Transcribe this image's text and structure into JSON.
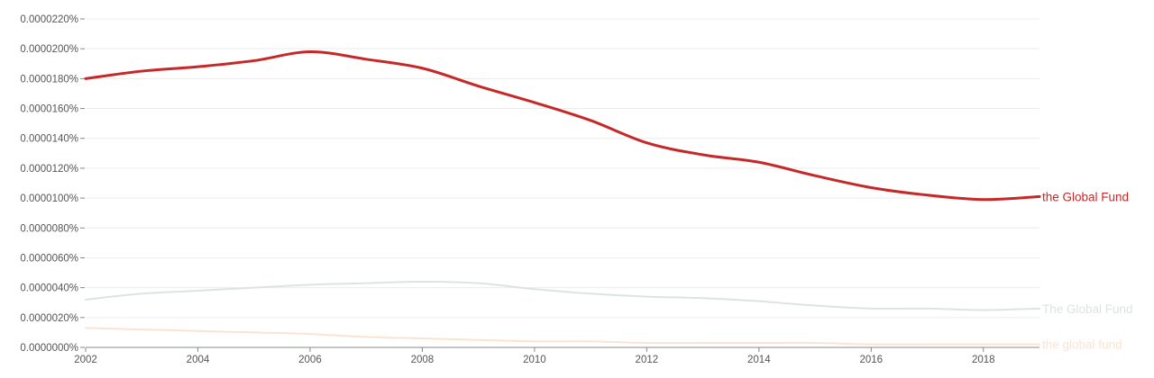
{
  "chart_data": {
    "type": "line",
    "title": "",
    "xlabel": "",
    "ylabel": "",
    "xlim": [
      2002,
      2019
    ],
    "ylim": [
      0,
      2.2e-05
    ],
    "y_ticks": [
      "0.0000000%",
      "0.0000020%",
      "0.0000040%",
      "0.0000060%",
      "0.0000080%",
      "0.0000100%",
      "0.0000120%",
      "0.0000140%",
      "0.0000160%",
      "0.0000180%",
      "0.0000200%",
      "0.0000220%"
    ],
    "x_ticks": [
      "2002",
      "2004",
      "2006",
      "2008",
      "2010",
      "2012",
      "2014",
      "2016",
      "2018"
    ],
    "grid": true,
    "legend_placement": "right-end-labels",
    "x": [
      2002,
      2003,
      2004,
      2005,
      2006,
      2007,
      2008,
      2009,
      2010,
      2011,
      2012,
      2013,
      2014,
      2015,
      2016,
      2017,
      2018,
      2019
    ],
    "series": [
      {
        "name": "the Global Fund",
        "color": "#c62828",
        "values": [
          1.8e-05,
          1.85e-05,
          1.88e-05,
          1.92e-05,
          1.98e-05,
          1.93e-05,
          1.87e-05,
          1.75e-05,
          1.64e-05,
          1.52e-05,
          1.37e-05,
          1.29e-05,
          1.24e-05,
          1.15e-05,
          1.07e-05,
          1.02e-05,
          9.9e-06,
          1.01e-05
        ]
      },
      {
        "name": "The Global Fund",
        "color": "#dde3e4",
        "values": [
          3.2e-06,
          3.6e-06,
          3.8e-06,
          4e-06,
          4.2e-06,
          4.3e-06,
          4.4e-06,
          4.3e-06,
          3.9e-06,
          3.6e-06,
          3.4e-06,
          3.3e-06,
          3.1e-06,
          2.8e-06,
          2.6e-06,
          2.6e-06,
          2.5e-06,
          2.6e-06
        ]
      },
      {
        "name": "the global fund",
        "color": "#fbe3d0",
        "values": [
          1.3e-06,
          1.2e-06,
          1.1e-06,
          1e-06,
          9e-07,
          7e-07,
          6e-07,
          5e-07,
          4e-07,
          4e-07,
          3e-07,
          3e-07,
          3e-07,
          3e-07,
          2e-07,
          2e-07,
          2e-07,
          2e-07
        ]
      }
    ]
  }
}
